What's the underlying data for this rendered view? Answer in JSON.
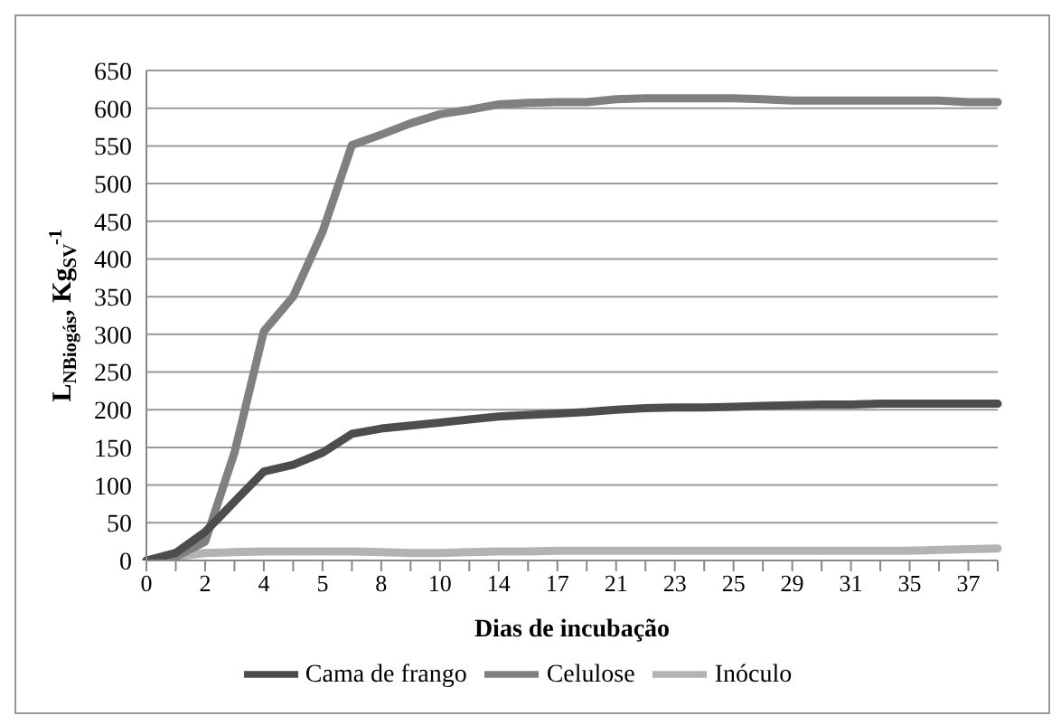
{
  "chart_data": {
    "type": "line",
    "xlabel": "Dias de incubação",
    "ylabel": "L$_{NBiogás}$, Kg$_{SV}$$^{-1}$",
    "categories": [
      "0",
      null,
      "2",
      null,
      "4",
      null,
      "5",
      null,
      "8",
      null,
      "10",
      null,
      "14",
      null,
      "17",
      null,
      "21",
      null,
      "23",
      null,
      "25",
      null,
      "29",
      null,
      "31",
      null,
      "35",
      null,
      "37",
      null
    ],
    "series": [
      {
        "name": "Inóculo",
        "color": "#b3b3b3",
        "values": [
          0,
          5,
          10,
          11,
          12,
          12,
          12,
          12,
          11,
          10,
          10,
          11,
          12,
          12,
          13,
          13,
          13,
          13,
          13,
          13,
          13,
          13,
          13,
          13,
          13,
          13,
          13,
          14,
          15,
          16
        ]
      },
      {
        "name": "Celulose",
        "color": "#808080",
        "values": [
          0,
          5,
          25,
          143,
          304,
          350,
          436,
          551,
          565,
          580,
          592,
          598,
          605,
          607,
          608,
          608,
          612,
          613,
          613,
          613,
          613,
          612,
          610,
          610,
          610,
          610,
          610,
          610,
          608,
          608
        ]
      },
      {
        "name": "Cama de frango",
        "color": "#4d4d4d",
        "values": [
          0,
          10,
          38,
          78,
          118,
          127,
          143,
          168,
          175,
          179,
          183,
          187,
          191,
          193,
          195,
          197,
          200,
          202,
          203,
          203,
          204,
          205,
          206,
          207,
          207,
          208,
          208,
          208,
          208,
          208
        ]
      }
    ],
    "ylim": [
      0,
      650
    ],
    "yticks": [
      0,
      50,
      100,
      150,
      200,
      250,
      300,
      350,
      400,
      450,
      500,
      550,
      600,
      650
    ],
    "grid": "y",
    "legend": "bottom",
    "marker": "none",
    "line_style": "solid"
  }
}
